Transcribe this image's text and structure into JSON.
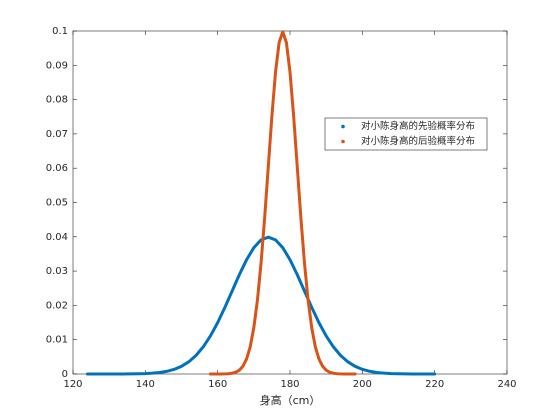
{
  "chart_data": {
    "type": "line",
    "xlabel": "身高（cm）",
    "xlim": [
      120,
      240
    ],
    "xticks": [
      120,
      140,
      160,
      180,
      200,
      220,
      240
    ],
    "ylim": [
      0,
      0.1
    ],
    "yticks": [
      0,
      0.01,
      0.02,
      0.03,
      0.04,
      0.05,
      0.06,
      0.07,
      0.08,
      0.09,
      0.1
    ],
    "legend": "upper right",
    "series": [
      {
        "name": "对小陈身高的先验概率分布",
        "color": "#0072BD",
        "x": [
          124,
          126,
          128,
          130,
          132,
          134,
          136,
          138,
          140,
          142,
          144,
          146,
          148,
          150,
          152,
          154,
          156,
          158,
          160,
          162,
          164,
          166,
          168,
          170,
          172,
          174,
          176,
          178,
          180,
          182,
          184,
          186,
          188,
          190,
          192,
          194,
          196,
          198,
          200,
          202,
          204,
          206,
          208,
          210,
          212,
          214,
          216,
          218,
          220
        ],
        "values": [
          0,
          0,
          0,
          0,
          1e-05,
          1e-05,
          3e-05,
          6e-05,
          0.00012,
          0.00024,
          0.00044,
          0.00079,
          0.00136,
          0.00224,
          0.00355,
          0.0054,
          0.0079,
          0.01109,
          0.01497,
          0.01942,
          0.0242,
          0.02897,
          0.03332,
          0.03683,
          0.0391,
          0.03989,
          0.0391,
          0.03683,
          0.03332,
          0.02897,
          0.0242,
          0.01942,
          0.01497,
          0.01109,
          0.0079,
          0.0054,
          0.00355,
          0.00224,
          0.00136,
          0.00079,
          0.00044,
          0.00024,
          0.00012,
          6e-05,
          3e-05,
          1e-05,
          1e-05,
          0,
          0
        ]
      },
      {
        "name": "对小陈身高的后验概率分布",
        "color": "#D95319",
        "x": [
          158,
          159,
          160,
          161,
          162,
          163,
          164,
          165,
          166,
          167,
          168,
          169,
          170,
          171,
          172,
          173,
          174,
          175,
          176,
          177,
          178,
          179,
          180,
          181,
          182,
          183,
          184,
          185,
          186,
          187,
          188,
          189,
          190,
          191,
          192,
          193,
          194,
          195,
          196,
          197,
          198
        ],
        "values": [
          0,
          0,
          0,
          1e-05,
          3e-05,
          9e-05,
          0.00022,
          0.00051,
          0.00111,
          0.00228,
          0.00438,
          0.00794,
          0.0135,
          0.02159,
          0.03238,
          0.04566,
          0.06049,
          0.07528,
          0.08802,
          0.09667,
          0.09974,
          0.09667,
          0.08802,
          0.07528,
          0.06049,
          0.04566,
          0.03238,
          0.02159,
          0.0135,
          0.00794,
          0.00438,
          0.00228,
          0.00111,
          0.00051,
          0.00022,
          9e-05,
          3e-05,
          1e-05,
          0,
          0,
          0
        ]
      }
    ]
  }
}
